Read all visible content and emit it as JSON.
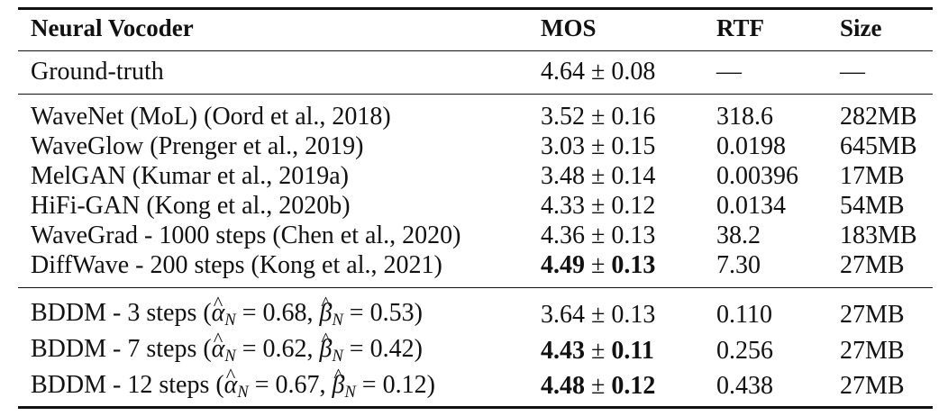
{
  "header": {
    "col_vocoder": "Neural Vocoder",
    "col_mos": "MOS",
    "col_rtf": "RTF",
    "col_size": "Size"
  },
  "ground_truth": {
    "name": "Ground-truth",
    "mos_mean": "4.64",
    "mos_std": "0.08",
    "rtf": "—",
    "size": "—"
  },
  "baselines": [
    {
      "name": "WaveNet (MoL) (Oord et al., 2018)",
      "mos_mean": "3.52",
      "mos_std": "0.16",
      "rtf": "318.6",
      "size": "282MB"
    },
    {
      "name": "WaveGlow (Prenger et al., 2019)",
      "mos_mean": "3.03",
      "mos_std": "0.15",
      "rtf": "0.0198",
      "size": "645MB"
    },
    {
      "name": "MelGAN (Kumar et al., 2019a)",
      "mos_mean": "3.48",
      "mos_std": "0.14",
      "rtf": "0.00396",
      "size": "17MB"
    },
    {
      "name": "HiFi-GAN (Kong et al., 2020b)",
      "mos_mean": "4.33",
      "mos_std": "0.12",
      "rtf": "0.0134",
      "size": "54MB"
    },
    {
      "name": "WaveGrad - 1000 steps (Chen et al., 2020)",
      "mos_mean": "4.36",
      "mos_std": "0.13",
      "rtf": "38.2",
      "size": "183MB"
    },
    {
      "name": "DiffWave - 200 steps (Kong et al., 2021)",
      "mos_mean": "4.49",
      "mos_std": "0.13",
      "rtf": "7.30",
      "size": "27MB"
    }
  ],
  "bddm": [
    {
      "prefix": "BDDM - 3 steps (",
      "alpha": "0.68",
      "beta": "0.53",
      "mos_mean": "3.64",
      "mos_std": "0.13",
      "rtf": "0.110",
      "size": "27MB"
    },
    {
      "prefix": "BDDM - 7 steps (",
      "alpha": "0.62",
      "beta": "0.42",
      "mos_mean": "4.43",
      "mos_std": "0.11",
      "rtf": "0.256",
      "size": "27MB"
    },
    {
      "prefix": "BDDM - 12 steps (",
      "alpha": "0.67",
      "beta": "0.12",
      "mos_mean": "4.48",
      "mos_std": "0.12",
      "rtf": "0.438",
      "size": "27MB"
    }
  ],
  "symbols": {
    "pm": "±",
    "eq": "=",
    "alpha": "α",
    "beta": "β",
    "sub_n": "N",
    "comma": ",",
    "close": ")"
  }
}
